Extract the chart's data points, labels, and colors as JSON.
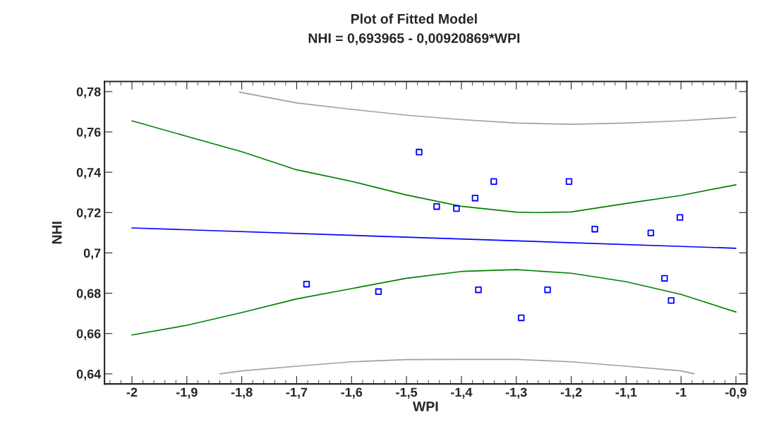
{
  "chart_data": {
    "type": "scatter",
    "title": "Plot of Fitted Model",
    "subtitle": "NHI = 0,693965 - 0,00920869*WPI",
    "xlabel": "WPI",
    "ylabel": "NHI",
    "xlim": [
      -2.05,
      -0.88
    ],
    "ylim": [
      0.635,
      0.785
    ],
    "xticks": [
      {
        "value": -2,
        "label": "-2"
      },
      {
        "value": -1.9,
        "label": "-1,9"
      },
      {
        "value": -1.8,
        "label": "-1,8"
      },
      {
        "value": -1.7,
        "label": "-1,7"
      },
      {
        "value": -1.6,
        "label": "-1,6"
      },
      {
        "value": -1.5,
        "label": "-1,5"
      },
      {
        "value": -1.4,
        "label": "-1,4"
      },
      {
        "value": -1.3,
        "label": "-1,3"
      },
      {
        "value": -1.2,
        "label": "-1,2"
      },
      {
        "value": -1.1,
        "label": "-1,1"
      },
      {
        "value": -1,
        "label": "-1"
      },
      {
        "value": -0.9,
        "label": "-0,9"
      }
    ],
    "yticks": [
      {
        "value": 0.64,
        "label": "0,64"
      },
      {
        "value": 0.66,
        "label": "0,66"
      },
      {
        "value": 0.68,
        "label": "0,68"
      },
      {
        "value": 0.7,
        "label": "0,7"
      },
      {
        "value": 0.72,
        "label": "0,72"
      },
      {
        "value": 0.74,
        "label": "0,74"
      },
      {
        "value": 0.76,
        "label": "0,76"
      },
      {
        "value": 0.78,
        "label": "0,78"
      }
    ],
    "grid": false,
    "legend": false,
    "series": [
      {
        "type": "line",
        "color": "#a0a0a0",
        "x": [
          -1.804,
          -1.7,
          -1.6,
          -1.5,
          -1.4,
          -1.3,
          -1.2,
          -1.1,
          -1.0,
          -0.9
        ],
        "values": [
          0.7797,
          0.7744,
          0.7712,
          0.7683,
          0.7661,
          0.7644,
          0.7638,
          0.7644,
          0.7655,
          0.7672
        ]
      },
      {
        "type": "line",
        "color": "#008000",
        "x": [
          -2,
          -1.9,
          -1.8,
          -1.7,
          -1.6,
          -1.5,
          -1.4,
          -1.3,
          -1.264,
          -1.2,
          -1.1,
          -1.0,
          -0.9
        ],
        "values": [
          0.7655,
          0.7578,
          0.7502,
          0.7412,
          0.7355,
          0.7287,
          0.7231,
          0.7202,
          0.72,
          0.7203,
          0.7245,
          0.7285,
          0.7338
        ]
      },
      {
        "type": "line",
        "color": "#0000ff",
        "x": [
          -2,
          -0.9
        ],
        "values": [
          0.7124,
          0.7023
        ]
      },
      {
        "type": "line",
        "color": "#008000",
        "x": [
          -2,
          -1.9,
          -1.8,
          -1.7,
          -1.6,
          -1.5,
          -1.4,
          -1.3,
          -1.2,
          -1.1,
          -1.0,
          -0.9
        ],
        "values": [
          0.6593,
          0.6641,
          0.6704,
          0.6772,
          0.6823,
          0.6874,
          0.6908,
          0.6917,
          0.6899,
          0.6857,
          0.6794,
          0.6707
        ]
      },
      {
        "type": "line",
        "color": "#a0a0a0",
        "x": [
          -1.84,
          -1.8,
          -1.7,
          -1.6,
          -1.5,
          -1.4,
          -1.3,
          -1.2,
          -1.1,
          -1.0,
          -0.976
        ],
        "values": [
          0.64,
          0.6415,
          0.6438,
          0.646,
          0.6471,
          0.6472,
          0.6472,
          0.646,
          0.6438,
          0.6415,
          0.6401
        ]
      },
      {
        "color": "#0000ff",
        "marker": "square",
        "x": [
          -1.477,
          -1.445,
          -1.682,
          -1.551,
          -1.409,
          -1.375,
          -1.341,
          -1.204,
          -1.157,
          -1.055,
          -1.002,
          -1.369,
          -1.243,
          -1.291,
          -1.03,
          -1.018
        ],
        "values": [
          0.75,
          0.723,
          0.6845,
          0.6808,
          0.722,
          0.7272,
          0.7354,
          0.7354,
          0.7118,
          0.7099,
          0.7176,
          0.6817,
          0.6817,
          0.6678,
          0.6874,
          0.6764
        ]
      }
    ]
  }
}
